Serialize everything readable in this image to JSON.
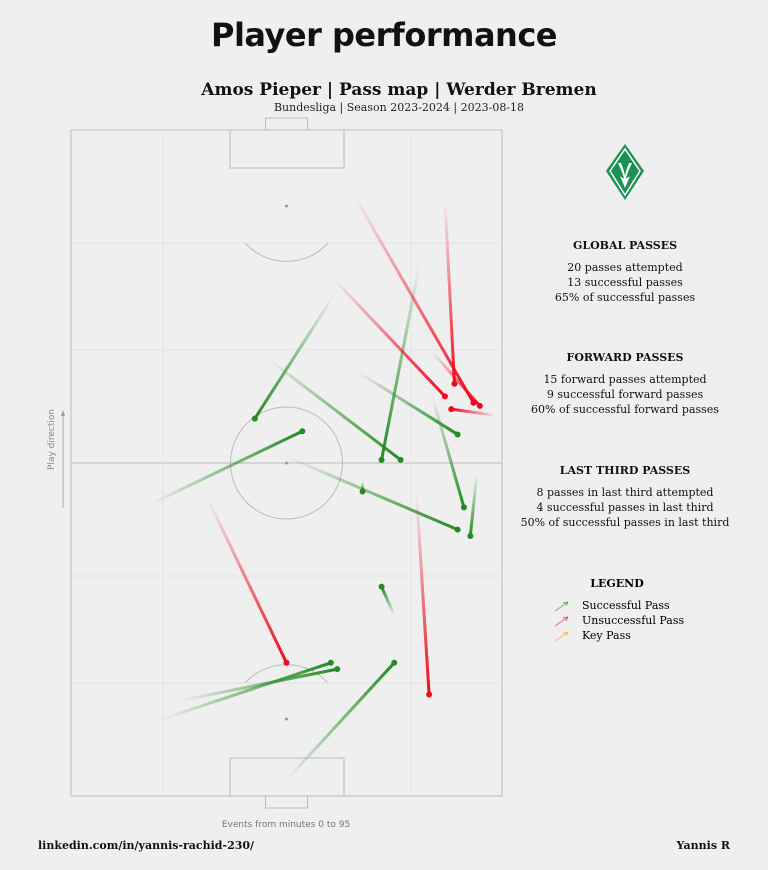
{
  "page_heading": "Player performance",
  "chart_data": {
    "type": "pass_map",
    "title": "Amos Pieper | Pass map | Werder Bremen",
    "subtitle": "Bundesliga | Season 2023-2024 | 2023-08-18",
    "pitch": {
      "length": 105,
      "width": 68,
      "orientation": "vertical",
      "attack_direction": "up"
    },
    "play_direction_label": "Play direction",
    "time_note": "Events from minutes 0 to 95",
    "passes": [
      {
        "start": [
          12,
          14
        ],
        "end": [
          21,
          41
        ],
        "outcome": "successful"
      },
      {
        "start": [
          15,
          17
        ],
        "end": [
          20,
          42
        ],
        "outcome": "successful"
      },
      {
        "start": [
          2.5,
          34
        ],
        "end": [
          21,
          51
        ],
        "outcome": "successful"
      },
      {
        "start": [
          49.5,
          46
        ],
        "end": [
          48,
          46
        ],
        "outcome": "successful"
      },
      {
        "start": [
          28.5,
          51
        ],
        "end": [
          33,
          49
        ],
        "outcome": "successful"
      },
      {
        "start": [
          53.5,
          34
        ],
        "end": [
          42,
          61
        ],
        "outcome": "successful"
      },
      {
        "start": [
          46,
          12.5
        ],
        "end": [
          57.5,
          36.5
        ],
        "outcome": "successful"
      },
      {
        "start": [
          69,
          31
        ],
        "end": [
          53,
          52
        ],
        "outcome": "successful"
      },
      {
        "start": [
          79,
          41.5
        ],
        "end": [
          59.5,
          29
        ],
        "outcome": "successful"
      },
      {
        "start": [
          84,
          55
        ],
        "end": [
          53,
          49
        ],
        "outcome": "successful"
      },
      {
        "start": [
          67,
          45
        ],
        "end": [
          57,
          61
        ],
        "outcome": "successful"
      },
      {
        "start": [
          63,
          57
        ],
        "end": [
          45.5,
          62
        ],
        "outcome": "successful"
      },
      {
        "start": [
          50.5,
          64
        ],
        "end": [
          41,
          63
        ],
        "outcome": "successful"
      },
      {
        "start": [
          95,
          44.5
        ],
        "end": [
          62,
          63.5
        ],
        "outcome": "unsuccessful"
      },
      {
        "start": [
          94,
          59
        ],
        "end": [
          65,
          60.5
        ],
        "outcome": "unsuccessful"
      },
      {
        "start": [
          82,
          41
        ],
        "end": [
          63,
          59
        ],
        "outcome": "unsuccessful"
      },
      {
        "start": [
          70,
          57
        ],
        "end": [
          61.5,
          64.5
        ],
        "outcome": "unsuccessful"
      },
      {
        "start": [
          60,
          67
        ],
        "end": [
          61,
          60
        ],
        "outcome": "unsuccessful"
      },
      {
        "start": [
          48,
          54.5
        ],
        "end": [
          16,
          56.5
        ],
        "outcome": "unsuccessful"
      },
      {
        "start": [
          47,
          21.5
        ],
        "end": [
          21,
          34
        ],
        "outcome": "unsuccessful"
      }
    ],
    "colors": {
      "successful": "#228b22",
      "unsuccessful": "#ee0a1e",
      "key_pass": "#ffb347",
      "pitch_lines": "#bbbbbb"
    }
  },
  "stats": [
    {
      "title": "GLOBAL PASSES",
      "lines": [
        "20 passes attempted",
        "13 successful passes",
        "65% of successful passes"
      ]
    },
    {
      "title": "FORWARD PASSES",
      "lines": [
        "15 forward passes attempted",
        "9 successful forward passes",
        "60% of successful forward passes"
      ]
    },
    {
      "title": "LAST THIRD PASSES",
      "lines": [
        "8 passes in last third attempted",
        "4 successful passes in last third",
        "50% of successful passes in last third"
      ]
    }
  ],
  "legend": {
    "title": "LEGEND",
    "items": [
      {
        "label": "Successful Pass",
        "color": "#228b22"
      },
      {
        "label": "Unsuccessful Pass",
        "color": "#ee0a1e"
      },
      {
        "label": "Key Pass",
        "color": "#ffb347"
      }
    ]
  },
  "logo": {
    "icon": "werder-bremen-crest-icon",
    "color": "#1d9053"
  },
  "footer": {
    "left": "linkedin.com/in/yannis-rachid-230/",
    "right": "Yannis R"
  }
}
